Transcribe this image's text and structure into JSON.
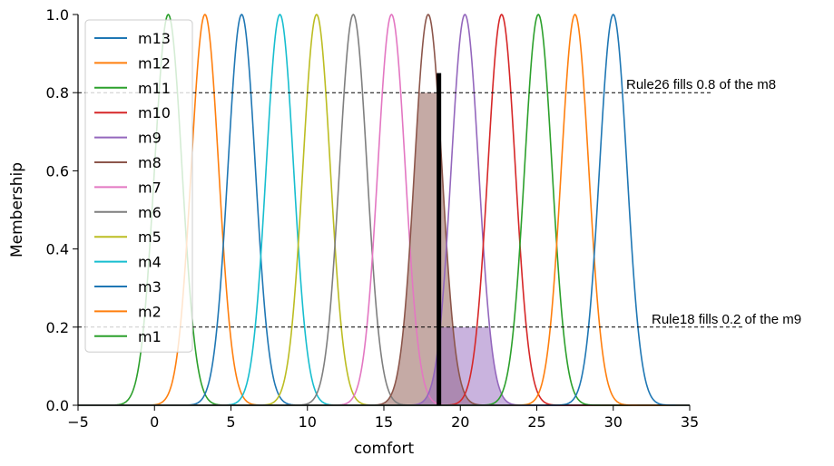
{
  "chart_data": {
    "type": "line",
    "title": "",
    "xlabel": "comfort",
    "ylabel": "Membership",
    "xlim": [
      -5,
      35
    ],
    "ylim": [
      0,
      1.0
    ],
    "x_ticks": [
      "−5",
      "0",
      "5",
      "10",
      "15",
      "20",
      "25",
      "30",
      "35"
    ],
    "x_tick_values": [
      -5,
      0,
      5,
      10,
      15,
      20,
      25,
      30,
      35
    ],
    "y_ticks": [
      "0.0",
      "0.2",
      "0.4",
      "0.6",
      "0.8",
      "1.0"
    ],
    "y_tick_values": [
      0,
      0.2,
      0.4,
      0.6,
      0.8,
      1.0
    ],
    "grid": false,
    "legend_position": "top-left",
    "series": [
      {
        "name": "m13",
        "shape": "gaussian",
        "mean": 30.0,
        "sigma": 0.9,
        "color": "#1f77b4"
      },
      {
        "name": "m12",
        "shape": "gaussian",
        "mean": 27.5,
        "sigma": 0.9,
        "color": "#ff7f0e"
      },
      {
        "name": "m11",
        "shape": "gaussian",
        "mean": 25.1,
        "sigma": 0.9,
        "color": "#2ca02c"
      },
      {
        "name": "m10",
        "shape": "gaussian",
        "mean": 22.7,
        "sigma": 0.9,
        "color": "#d62728"
      },
      {
        "name": "m9",
        "shape": "gaussian",
        "mean": 20.3,
        "sigma": 0.9,
        "color": "#9467bd"
      },
      {
        "name": "m8",
        "shape": "gaussian",
        "mean": 17.9,
        "sigma": 0.9,
        "color": "#8c564b"
      },
      {
        "name": "m7",
        "shape": "gaussian",
        "mean": 15.5,
        "sigma": 0.9,
        "color": "#e377c2"
      },
      {
        "name": "m6",
        "shape": "gaussian",
        "mean": 13.0,
        "sigma": 0.9,
        "color": "#7f7f7f"
      },
      {
        "name": "m5",
        "shape": "gaussian",
        "mean": 10.6,
        "sigma": 0.9,
        "color": "#bcbd22"
      },
      {
        "name": "m4",
        "shape": "gaussian",
        "mean": 8.2,
        "sigma": 0.9,
        "color": "#17becf"
      },
      {
        "name": "m3",
        "shape": "gaussian",
        "mean": 5.7,
        "sigma": 0.9,
        "color": "#1f77b4"
      },
      {
        "name": "m2",
        "shape": "gaussian",
        "mean": 3.3,
        "sigma": 0.9,
        "color": "#ff7f0e"
      },
      {
        "name": "m1",
        "shape": "gaussian",
        "mean": 0.9,
        "sigma": 0.9,
        "color": "#2ca02c"
      }
    ],
    "filled_regions": [
      {
        "series": "m8",
        "level": 0.8,
        "color": "#8c564b"
      },
      {
        "series": "m9",
        "level": 0.2,
        "color": "#9467bd"
      }
    ],
    "vertical_marker": {
      "x": 18.6,
      "y": 0.85,
      "color": "#000000"
    },
    "reference_lines": [
      {
        "y": 0.8,
        "x_end": 36.5,
        "style": "dashed"
      },
      {
        "y": 0.2,
        "x_end": 38.5,
        "style": "dashed"
      }
    ],
    "annotations": [
      {
        "text": "Rule26 fills 0.8 of the m8",
        "y": 0.8
      },
      {
        "text": "Rule18 fills 0.2 of the m9",
        "y": 0.2
      }
    ]
  }
}
